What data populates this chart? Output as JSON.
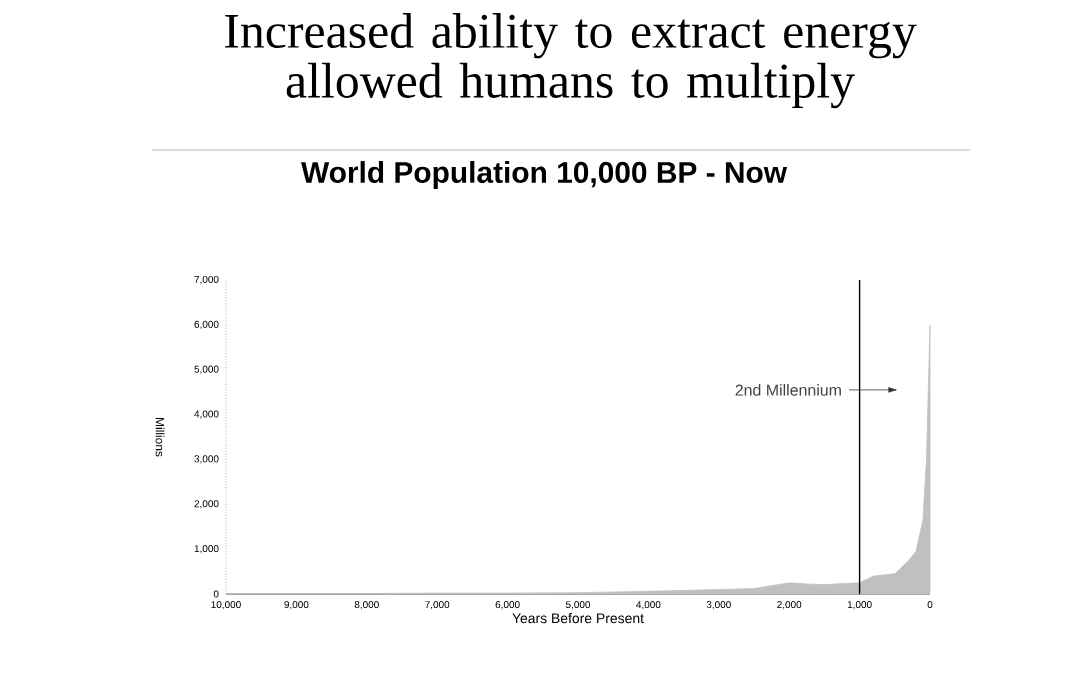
{
  "chart_data": {
    "type": "area",
    "title": "Increased ability to extract energy allowed humans to multiply",
    "subtitle": "World Population 10,000 BP - Now",
    "xlabel": "Years Before Present",
    "ylabel": "Millions",
    "x": [
      10000,
      9000,
      8000,
      7000,
      6000,
      5000,
      4000,
      3000,
      2500,
      2000,
      1700,
      1500,
      1000,
      800,
      500,
      300,
      200,
      100,
      50,
      0
    ],
    "values": [
      10,
      10,
      10,
      20,
      20,
      30,
      60,
      100,
      120,
      250,
      220,
      210,
      250,
      400,
      450,
      750,
      950,
      1650,
      3000,
      6000
    ],
    "color": "#c0c0c0",
    "xlim": [
      10000,
      0
    ],
    "ylim": [
      0,
      7000
    ],
    "xticks": [
      {
        "value": 10000,
        "label": "10,000"
      },
      {
        "value": 9000,
        "label": "9,000"
      },
      {
        "value": 8000,
        "label": "8,000"
      },
      {
        "value": 7000,
        "label": "7,000"
      },
      {
        "value": 6000,
        "label": "6,000"
      },
      {
        "value": 5000,
        "label": "5,000"
      },
      {
        "value": 4000,
        "label": "4,000"
      },
      {
        "value": 3000,
        "label": "3,000"
      },
      {
        "value": 2000,
        "label": "2,000"
      },
      {
        "value": 1000,
        "label": "1,000"
      },
      0
    ],
    "yticks": [
      0,
      {
        "value": 1000,
        "label": "1,000"
      },
      {
        "value": 2000,
        "label": "2,000"
      },
      {
        "value": 3000,
        "label": "3,000"
      },
      {
        "value": 4000,
        "label": "4,000"
      },
      {
        "value": 5000,
        "label": "5,000"
      },
      {
        "value": 6000,
        "label": "6,000"
      },
      {
        "value": 7000,
        "label": "7,000"
      }
    ],
    "ref_lines": [
      {
        "axis": "x",
        "value": 1000,
        "label": "2nd Millennium"
      }
    ]
  }
}
